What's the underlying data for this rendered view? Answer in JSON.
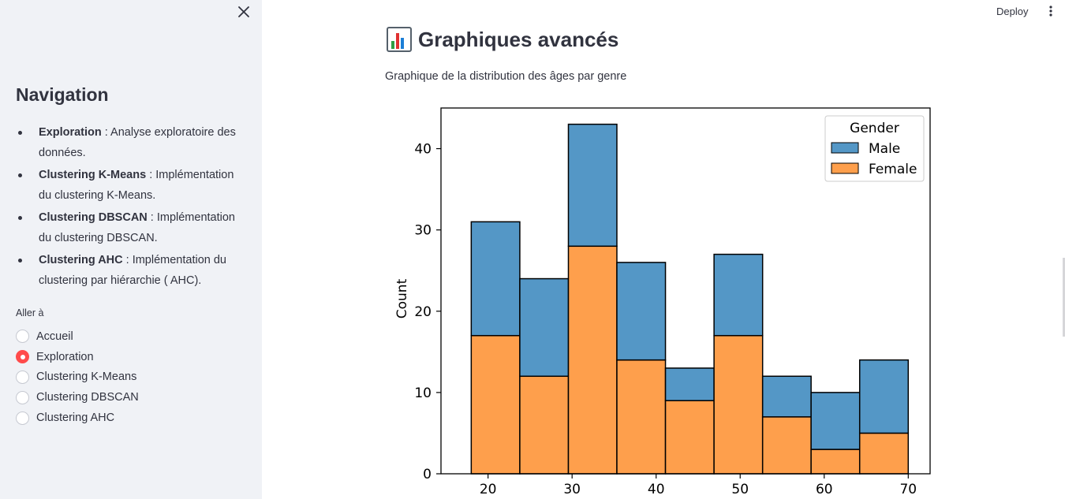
{
  "sidebar": {
    "close_icon": "close-icon",
    "title": "Navigation",
    "items": [
      {
        "bold": "Exploration",
        "text": " : Analyse exploratoire des données."
      },
      {
        "bold": "Clustering K-Means",
        "text": " : Implémentation du clustering K-Means."
      },
      {
        "bold": "Clustering DBSCAN",
        "text": " : Implémentation du clustering DBSCAN."
      },
      {
        "bold": "Clustering AHC",
        "text": " : Implémentation du clustering par hiérarchie ( AHC)."
      }
    ],
    "radio_label": "Aller à",
    "radio_options": [
      "Accueil",
      "Exploration",
      "Clustering K-Means",
      "Clustering DBSCAN",
      "Clustering AHC"
    ],
    "selected_index": 1
  },
  "header": {
    "deploy_label": "Deploy",
    "menu_icon": "more-vertical-icon"
  },
  "main": {
    "title_icon": "bar-chart-icon",
    "title": "Graphiques avancés",
    "subtitle": "Graphique de la distribution des âges par genre"
  },
  "colors": {
    "accent": "#ff4b4b",
    "male": "#5497c6",
    "female": "#fe9f4c",
    "sidebar_bg": "#f0f2f6"
  },
  "chart_data": {
    "type": "bar",
    "stacked": true,
    "xlabel": "",
    "ylabel": "Count",
    "ylim": [
      0,
      45
    ],
    "xlim": [
      14.4,
      72.6
    ],
    "xticks": [
      20,
      30,
      40,
      50,
      60,
      70
    ],
    "yticks": [
      0,
      10,
      20,
      30,
      40
    ],
    "bin_edges": [
      18,
      23.78,
      29.56,
      35.33,
      41.11,
      46.89,
      52.67,
      58.44,
      64.22,
      70
    ],
    "legend": {
      "title": "Gender",
      "position": "top-right"
    },
    "series": [
      {
        "name": "Male",
        "color": "#5497c6",
        "values": [
          14,
          12,
          15,
          12,
          4,
          10,
          5,
          7,
          9
        ]
      },
      {
        "name": "Female",
        "color": "#fe9f4c",
        "values": [
          17,
          12,
          28,
          14,
          9,
          17,
          7,
          3,
          5
        ]
      }
    ]
  }
}
